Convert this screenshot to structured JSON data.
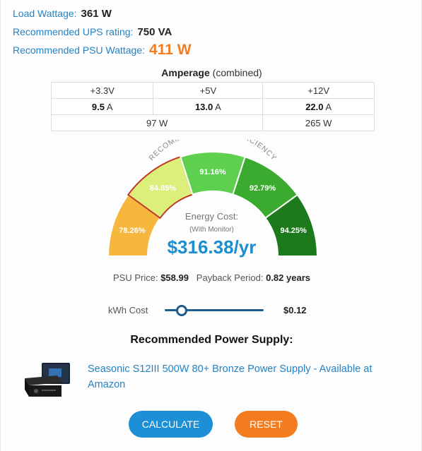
{
  "summary": {
    "load_label": "Load Wattage:",
    "load_value": "361 W",
    "ups_label": "Recommended UPS rating:",
    "ups_value": "750 VA",
    "psu_label": "Recommended PSU Wattage:",
    "psu_value": "411 W"
  },
  "amperage": {
    "title_bold": "Amperage",
    "title_rest": " (combined)",
    "rails": [
      {
        "name": "+3.3V",
        "amps": "9.5",
        "unit": " A"
      },
      {
        "name": "+5V",
        "amps": "13.0",
        "unit": " A"
      },
      {
        "name": "+12V",
        "amps": "22.0",
        "unit": " A"
      }
    ],
    "watts_33_5": "97 W",
    "watts_12": "265 W"
  },
  "efficiency": {
    "arc_label": "RECOMMENDED PSU EFFICIENCY",
    "segments": [
      {
        "label": "78.26%",
        "color": "#f6b73c"
      },
      {
        "label": "84.85%",
        "color": "#dbef7a"
      },
      {
        "label": "91.16%",
        "color": "#5fcf4f"
      },
      {
        "label": "92.79%",
        "color": "#3aab2e"
      },
      {
        "label": "94.25%",
        "color": "#1c7a1c"
      }
    ],
    "highlight_color": "#c0392b"
  },
  "energy": {
    "label": "Energy Cost:",
    "sub": "(With Monitor)",
    "value": "$316.38/yr"
  },
  "price": {
    "psu_label": "PSU Price:",
    "psu_value": "$58.99",
    "payback_label": "Payback Period:",
    "payback_value": "0.82 years"
  },
  "kwh": {
    "label": "kWh Cost",
    "value": "$0.12",
    "slider_level": 0.17
  },
  "recommended": {
    "title": "Recommended Power Supply:",
    "link_text": "Seasonic S12III 500W 80+ Bronze Power Supply - Available at Amazon"
  },
  "buttons": {
    "calculate": "CALCULATE",
    "reset": "RESET"
  },
  "colors": {
    "link": "#2383c6",
    "accent_orange": "#f47c20",
    "button_blue": "#1d8fd6"
  }
}
